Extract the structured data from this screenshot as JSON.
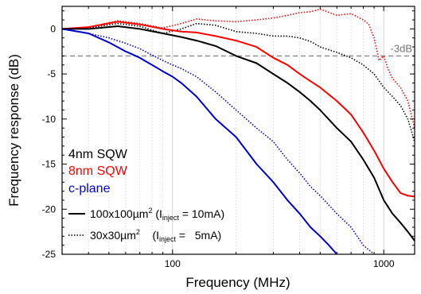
{
  "chart_data": {
    "type": "line",
    "xlabel": "Frequency (MHz)",
    "ylabel": "Frequency response (dB)",
    "x_scale": "log",
    "xlim": [
      30,
      1400
    ],
    "ylim": [
      -25,
      2.5
    ],
    "x_ticks": [
      100,
      1000
    ],
    "x_tick_labels": [
      "100",
      "1000"
    ],
    "y_ticks": [
      0,
      -5,
      -10,
      -15,
      -20,
      -25
    ],
    "y_tick_labels": [
      "0",
      "-5",
      "-10",
      "-15",
      "-20",
      "-25"
    ],
    "grid": true,
    "reference_line": {
      "y": -3,
      "label": "-3dB",
      "color": "#888888"
    },
    "series": [
      {
        "name": "8nm SQW",
        "size": "30x30",
        "color": "#ff0000",
        "dash": "dotted",
        "points": [
          [
            30,
            0
          ],
          [
            40,
            0.2
          ],
          [
            55,
            0.9
          ],
          [
            70,
            0.6
          ],
          [
            90,
            0.1
          ],
          [
            110,
            0.6
          ],
          [
            130,
            1.1
          ],
          [
            160,
            0.9
          ],
          [
            200,
            0.8
          ],
          [
            250,
            1.0
          ],
          [
            300,
            1.2
          ],
          [
            350,
            1.5
          ],
          [
            400,
            1.8
          ],
          [
            450,
            1.9
          ],
          [
            500,
            2.2
          ],
          [
            600,
            1.5
          ],
          [
            700,
            1.7
          ],
          [
            800,
            1.0
          ],
          [
            850,
            0.5
          ],
          [
            900,
            -1.0
          ],
          [
            950,
            -3.5
          ],
          [
            1000,
            -3.0
          ],
          [
            1050,
            -4.5
          ],
          [
            1100,
            -5.5
          ],
          [
            1200,
            -6.5
          ],
          [
            1300,
            -8.0
          ],
          [
            1400,
            -11.0
          ]
        ]
      },
      {
        "name": "4nm SQW",
        "size": "30x30",
        "color": "#000000",
        "dash": "dotted",
        "points": [
          [
            30,
            0
          ],
          [
            40,
            0.1
          ],
          [
            55,
            0.6
          ],
          [
            70,
            0.3
          ],
          [
            90,
            -0.5
          ],
          [
            110,
            0
          ],
          [
            130,
            0.6
          ],
          [
            160,
            0.4
          ],
          [
            200,
            -0.3
          ],
          [
            250,
            -0.5
          ],
          [
            300,
            -0.8
          ],
          [
            350,
            -0.8
          ],
          [
            400,
            -1.0
          ],
          [
            450,
            -1.4
          ],
          [
            500,
            -2.0
          ],
          [
            600,
            -2.6
          ],
          [
            700,
            -3.2
          ],
          [
            800,
            -4.0
          ],
          [
            900,
            -5.0
          ],
          [
            1000,
            -6.5
          ],
          [
            1100,
            -7.5
          ],
          [
            1200,
            -8.5
          ],
          [
            1300,
            -10.0
          ],
          [
            1400,
            -12.5
          ]
        ]
      },
      {
        "name": "8nm SQW",
        "size": "100x100",
        "color": "#ff0000",
        "dash": "solid",
        "points": [
          [
            30,
            0
          ],
          [
            40,
            0.2
          ],
          [
            55,
            0.8
          ],
          [
            70,
            0.5
          ],
          [
            90,
            0
          ],
          [
            110,
            -0.3
          ],
          [
            130,
            -0.4
          ],
          [
            160,
            -0.8
          ],
          [
            200,
            -1.3
          ],
          [
            250,
            -2.0
          ],
          [
            300,
            -3.2
          ],
          [
            350,
            -4.0
          ],
          [
            400,
            -5.0
          ],
          [
            450,
            -5.8
          ],
          [
            500,
            -6.5
          ],
          [
            600,
            -8.0
          ],
          [
            700,
            -9.5
          ],
          [
            800,
            -11.5
          ],
          [
            900,
            -13.5
          ],
          [
            1000,
            -15.5
          ],
          [
            1100,
            -17.0
          ],
          [
            1200,
            -18.2
          ],
          [
            1300,
            -18.5
          ],
          [
            1400,
            -18.6
          ]
        ]
      },
      {
        "name": "4nm SQW",
        "size": "100x100",
        "color": "#000000",
        "dash": "solid",
        "points": [
          [
            30,
            0
          ],
          [
            40,
            0
          ],
          [
            55,
            0.3
          ],
          [
            70,
            0
          ],
          [
            90,
            -0.5
          ],
          [
            110,
            -0.9
          ],
          [
            130,
            -1.3
          ],
          [
            160,
            -1.9
          ],
          [
            200,
            -3.0
          ],
          [
            250,
            -3.8
          ],
          [
            300,
            -5.0
          ],
          [
            350,
            -6.0
          ],
          [
            400,
            -7.0
          ],
          [
            450,
            -8.0
          ],
          [
            500,
            -9.0
          ],
          [
            600,
            -11.0
          ],
          [
            700,
            -12.5
          ],
          [
            800,
            -14.5
          ],
          [
            900,
            -16.5
          ],
          [
            1000,
            -19.0
          ],
          [
            1100,
            -20.5
          ],
          [
            1200,
            -21.5
          ],
          [
            1300,
            -22.5
          ],
          [
            1400,
            -23.5
          ]
        ]
      },
      {
        "name": "c-plane",
        "size": "30x30",
        "color": "#0000cc",
        "dash": "dotted",
        "points": [
          [
            30,
            0
          ],
          [
            40,
            -0.5
          ],
          [
            50,
            -1.0
          ],
          [
            60,
            -1.6
          ],
          [
            70,
            -2.2
          ],
          [
            80,
            -2.9
          ],
          [
            90,
            -3.5
          ],
          [
            100,
            -4.0
          ],
          [
            110,
            -4.4
          ],
          [
            130,
            -5.3
          ],
          [
            160,
            -7.0
          ],
          [
            200,
            -9.0
          ],
          [
            250,
            -11.0
          ],
          [
            300,
            -12.5
          ],
          [
            350,
            -14.5
          ],
          [
            400,
            -16.0
          ],
          [
            450,
            -17.5
          ],
          [
            500,
            -18.5
          ],
          [
            600,
            -20.5
          ],
          [
            700,
            -22.0
          ],
          [
            800,
            -24.0
          ],
          [
            900,
            -25.0
          ]
        ]
      },
      {
        "name": "c-plane",
        "size": "100x100",
        "color": "#0000cc",
        "dash": "solid",
        "points": [
          [
            30,
            0
          ],
          [
            40,
            -0.5
          ],
          [
            50,
            -1.5
          ],
          [
            60,
            -2.5
          ],
          [
            70,
            -3.2
          ],
          [
            80,
            -4.0
          ],
          [
            90,
            -4.7
          ],
          [
            100,
            -5.3
          ],
          [
            110,
            -6.0
          ],
          [
            130,
            -7.5
          ],
          [
            160,
            -10.0
          ],
          [
            200,
            -12.0
          ],
          [
            250,
            -15.0
          ],
          [
            300,
            -17.0
          ],
          [
            350,
            -19.0
          ],
          [
            400,
            -20.5
          ],
          [
            450,
            -22.0
          ],
          [
            500,
            -23.0
          ],
          [
            550,
            -24.0
          ],
          [
            600,
            -25.0
          ]
        ]
      }
    ]
  },
  "legend": {
    "items": [
      {
        "text": "4nm SQW",
        "color": "#000000"
      },
      {
        "text": "8nm SQW",
        "color": "#ff0000"
      },
      {
        "text": "c-plane",
        "color": "#0000cc"
      }
    ],
    "line_solid_text_a": "100x100µm",
    "line_solid_text_b": " (I",
    "line_solid_sub": "inject",
    "line_solid_text_c": " = 10mA)",
    "line_dotted_text_a": "30x30µm",
    "line_dotted_text_b": "    (I",
    "line_dotted_sub": "inject",
    "line_dotted_text_c": " =   5mA)",
    "sup": "2"
  }
}
